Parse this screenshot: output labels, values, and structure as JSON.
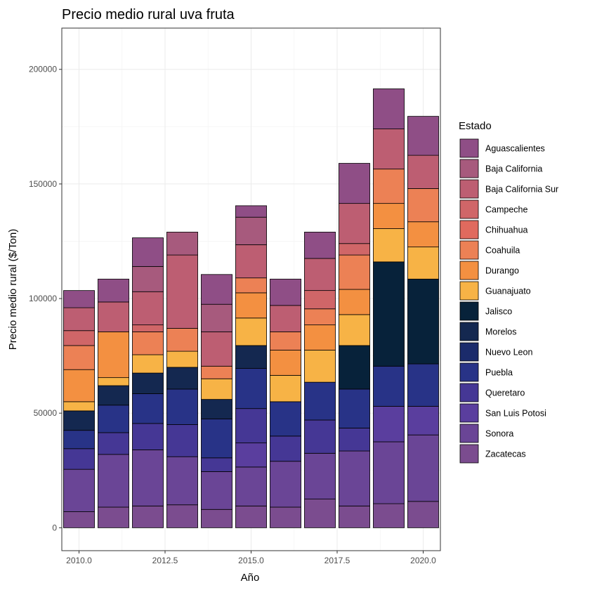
{
  "chart_data": {
    "type": "bar",
    "stacked": true,
    "title": "Precio medio rural uva fruta",
    "xlabel": "Año",
    "ylabel": "Precio medio rural ($/Ton)",
    "xlim": [
      2009.5,
      2020.5
    ],
    "ylim": [
      -10000,
      218000
    ],
    "x_ticks": [
      2010,
      2012.5,
      2015,
      2017.5,
      2020
    ],
    "x_tick_labels": [
      "2010.0",
      "2012.5",
      "2015.0",
      "2017.5",
      "2020.0"
    ],
    "y_ticks": [
      0,
      50000,
      100000,
      150000,
      200000
    ],
    "y_tick_labels": [
      "0",
      "50000",
      "100000",
      "150000",
      "200000"
    ],
    "grid": true,
    "legend": {
      "title": "Estado",
      "position": "right"
    },
    "x": [
      2010,
      2011,
      2012,
      2013,
      2014,
      2015,
      2016,
      2017,
      2018,
      2019,
      2020
    ],
    "series": [
      {
        "name": "Zacatecas",
        "color": "#7B4C8F",
        "values": [
          7000,
          9000,
          9500,
          10000,
          8000,
          9500,
          9000,
          12500,
          9500,
          10500,
          11500
        ]
      },
      {
        "name": "Sonora",
        "color": "#6A4596",
        "values": [
          18500,
          23000,
          24500,
          21000,
          16500,
          17000,
          20000,
          20000,
          24000,
          27000,
          29000
        ]
      },
      {
        "name": "San Luis Potosi",
        "color": "#5A3E9E",
        "values": [
          0,
          0,
          0,
          0,
          0,
          10500,
          0,
          0,
          0,
          15500,
          12500
        ]
      },
      {
        "name": "Queretaro",
        "color": "#453795",
        "values": [
          9000,
          9500,
          11500,
          14000,
          6000,
          15000,
          11000,
          14500,
          10000,
          0,
          0
        ]
      },
      {
        "name": "Puebla",
        "color": "#283387",
        "values": [
          8000,
          12000,
          13000,
          15500,
          17000,
          17500,
          15000,
          16500,
          17000,
          17500,
          18500
        ]
      },
      {
        "name": "Nuevo Leon",
        "color": "#1B2B6B",
        "values": [
          0,
          0,
          0,
          0,
          0,
          0,
          0,
          0,
          0,
          0,
          0
        ]
      },
      {
        "name": "Morelos",
        "color": "#142850",
        "values": [
          8500,
          8500,
          9000,
          9500,
          8500,
          10000,
          0,
          0,
          0,
          0,
          0
        ]
      },
      {
        "name": "Jalisco",
        "color": "#07223A",
        "values": [
          0,
          0,
          0,
          0,
          0,
          0,
          0,
          0,
          19000,
          45500,
          37000
        ]
      },
      {
        "name": "Guanajuato",
        "color": "#F7B346",
        "values": [
          4000,
          3500,
          8000,
          7000,
          9000,
          12000,
          11500,
          14000,
          13500,
          14500,
          14000
        ]
      },
      {
        "name": "Durango",
        "color": "#F39041",
        "values": [
          14000,
          20000,
          0,
          0,
          0,
          11000,
          11000,
          11000,
          11000,
          11000,
          11000
        ]
      },
      {
        "name": "Coahuila",
        "color": "#EC8155",
        "values": [
          10500,
          0,
          10000,
          10000,
          5500,
          6500,
          8000,
          7000,
          15000,
          15000,
          14500
        ]
      },
      {
        "name": "Chihuahua",
        "color": "#E06A5E",
        "values": [
          0,
          0,
          0,
          0,
          0,
          0,
          0,
          0,
          0,
          0,
          0
        ]
      },
      {
        "name": "Campeche",
        "color": "#D06668",
        "values": [
          6500,
          0,
          3000,
          0,
          0,
          0,
          0,
          8000,
          5000,
          0,
          0
        ]
      },
      {
        "name": "Baja California Sur",
        "color": "#BD5E72",
        "values": [
          10000,
          13000,
          14500,
          32000,
          15000,
          14500,
          11500,
          14000,
          17500,
          17500,
          14500
        ]
      },
      {
        "name": "Baja California",
        "color": "#A75A7D",
        "values": [
          0,
          0,
          11000,
          10000,
          12000,
          12000,
          0,
          0,
          0,
          0,
          0
        ]
      },
      {
        "name": "Aguascalientes",
        "color": "#8F4E86",
        "values": [
          7500,
          10000,
          12500,
          0,
          13000,
          5000,
          11500,
          11500,
          17500,
          17500,
          17000
        ]
      }
    ]
  }
}
